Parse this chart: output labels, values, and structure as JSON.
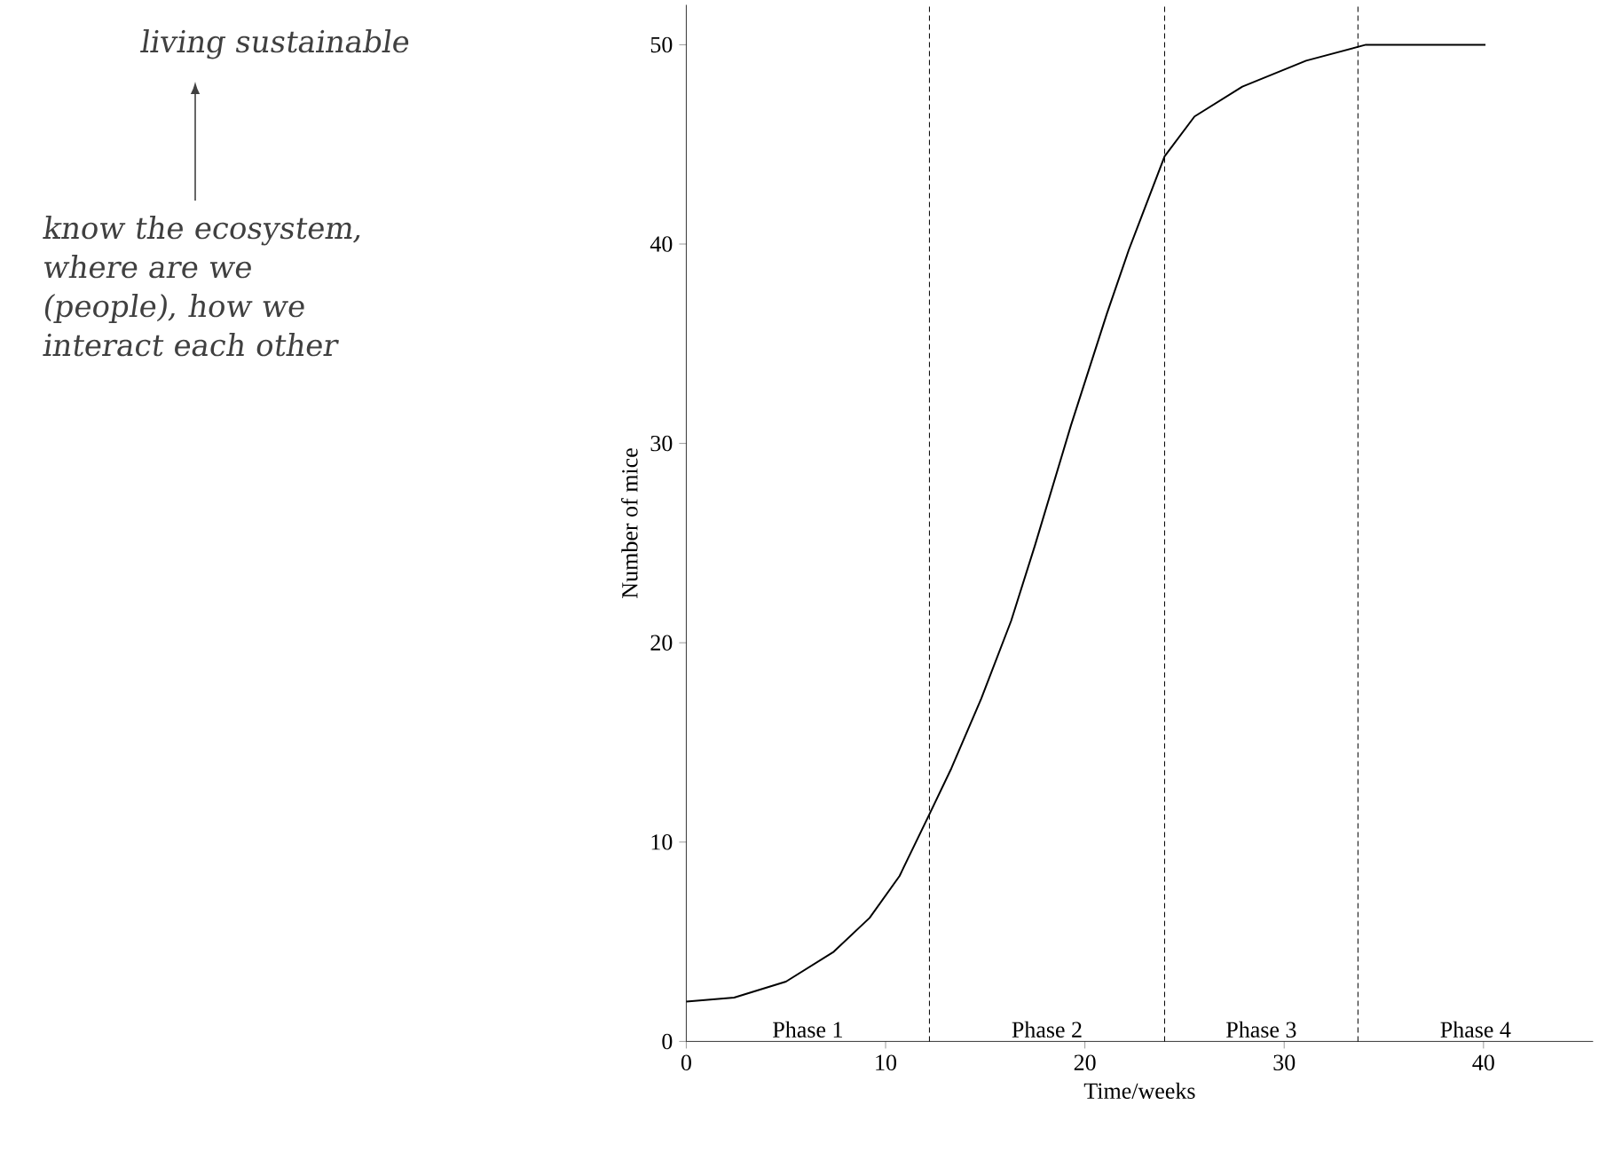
{
  "chart_data": {
    "type": "line",
    "xlabel": "Time/weeks",
    "ylabel": "Number of mice",
    "xlim": [
      0,
      45.5
    ],
    "ylim": [
      0,
      52
    ],
    "xticks": [
      0,
      10,
      20,
      30,
      40
    ],
    "yticks": [
      0,
      10,
      20,
      30,
      40,
      50
    ],
    "marker": "none",
    "line_style": "solid",
    "series": [
      {
        "color": "#000000",
        "x": [
          0,
          2.4,
          5.0,
          7.4,
          9.2,
          10.7,
          12.2,
          13.3,
          14.8,
          16.3,
          17.5,
          19.3,
          21.1,
          22.2,
          24.0,
          25.5,
          27.9,
          31.1,
          34.1,
          37.1,
          40.1
        ],
        "values": [
          2,
          2.2,
          3.0,
          4.5,
          6.2,
          8.3,
          11.4,
          13.7,
          17.2,
          21.1,
          24.9,
          30.9,
          36.5,
          39.7,
          44.4,
          46.4,
          47.9,
          49.2,
          50,
          50,
          50
        ]
      }
    ],
    "ref_lines": [
      {
        "axis": "x",
        "value": 12.2,
        "line_style": "dashed"
      },
      {
        "axis": "x",
        "value": 24.0,
        "line_style": "dashed"
      },
      {
        "axis": "x",
        "value": 33.7,
        "line_style": "dashed"
      }
    ],
    "annotations": [
      "Phase 1",
      "Phase 2",
      "Phase 3",
      "Phase 4",
      "living sustainable",
      "know the ecosystem, where are we (people), how we interact each other"
    ]
  }
}
